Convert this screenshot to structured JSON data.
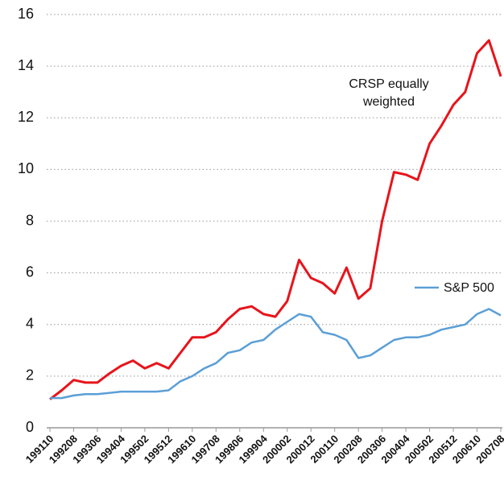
{
  "chart_data": {
    "type": "line",
    "categories": [
      "199110",
      null,
      "199208",
      null,
      "199306",
      null,
      "199404",
      null,
      "199502",
      null,
      "199512",
      null,
      "199610",
      null,
      "199708",
      null,
      "199806",
      null,
      "199904",
      null,
      "200002",
      null,
      "200012",
      null,
      "200110",
      null,
      "200208",
      null,
      "200306",
      null,
      "200404",
      null,
      "200502",
      null,
      "200512",
      null,
      "200610",
      null,
      "200708"
    ],
    "series": [
      {
        "color": "#e8141b",
        "values": [
          1.1,
          1.45,
          1.85,
          1.75,
          1.75,
          2.1,
          2.4,
          2.6,
          2.3,
          2.5,
          2.3,
          2.9,
          3.5,
          3.5,
          3.7,
          4.2,
          4.6,
          4.7,
          4.4,
          4.3,
          4.9,
          6.5,
          5.8,
          5.6,
          5.2,
          6.2,
          5.0,
          5.4,
          8.0,
          9.9,
          9.8,
          9.6,
          11.0,
          11.7,
          12.5,
          13.0,
          14.5,
          15.0,
          13.6
        ]
      },
      {
        "name": "S&P 500",
        "color": "#5b9fd6",
        "values": [
          1.15,
          1.15,
          1.25,
          1.3,
          1.3,
          1.35,
          1.4,
          1.4,
          1.4,
          1.4,
          1.45,
          1.8,
          2.0,
          2.3,
          2.5,
          2.9,
          3.0,
          3.3,
          3.4,
          3.8,
          4.1,
          4.4,
          4.3,
          3.7,
          3.6,
          3.4,
          2.7,
          2.8,
          3.1,
          3.4,
          3.5,
          3.5,
          3.6,
          3.8,
          3.9,
          4.0,
          4.4,
          4.6,
          4.35
        ]
      }
    ],
    "annotation": {
      "lines": [
        "CRSP equally",
        "weighted"
      ]
    },
    "ylim": [
      0,
      16
    ],
    "yticks": [
      0,
      2,
      4,
      6,
      8,
      10,
      12,
      14,
      16
    ],
    "grid": true
  }
}
